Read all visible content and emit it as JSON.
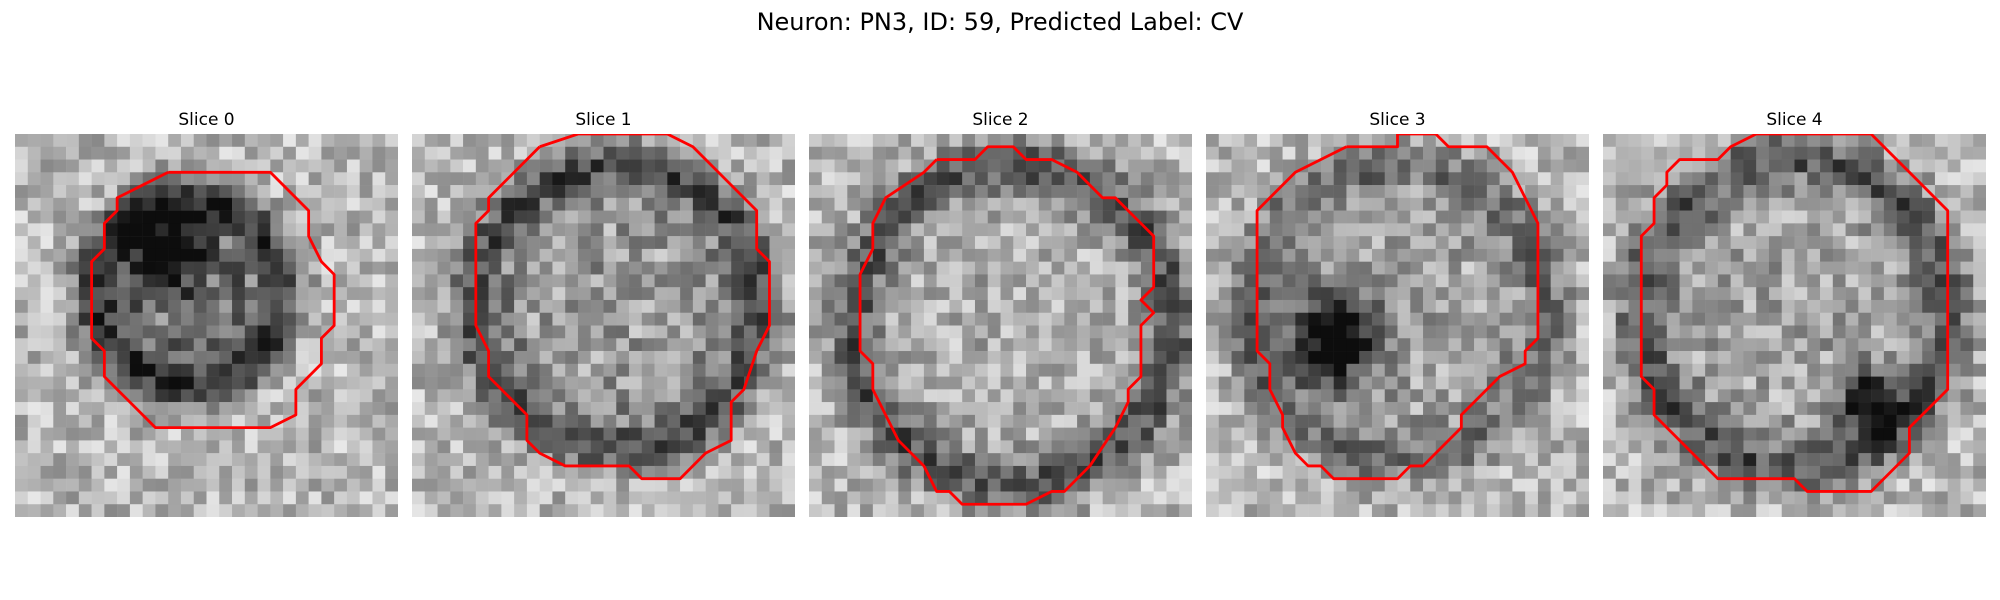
{
  "figure": {
    "title": "Neuron: PN3, ID: 59, Predicted Label: CV",
    "slices": [
      {
        "label": "Slice 0"
      },
      {
        "label": "Slice 1"
      },
      {
        "label": "Slice 2"
      },
      {
        "label": "Slice 3"
      },
      {
        "label": "Slice 4"
      }
    ]
  },
  "colors": {
    "contour": "#ff0000",
    "background": "#ffffff"
  }
}
